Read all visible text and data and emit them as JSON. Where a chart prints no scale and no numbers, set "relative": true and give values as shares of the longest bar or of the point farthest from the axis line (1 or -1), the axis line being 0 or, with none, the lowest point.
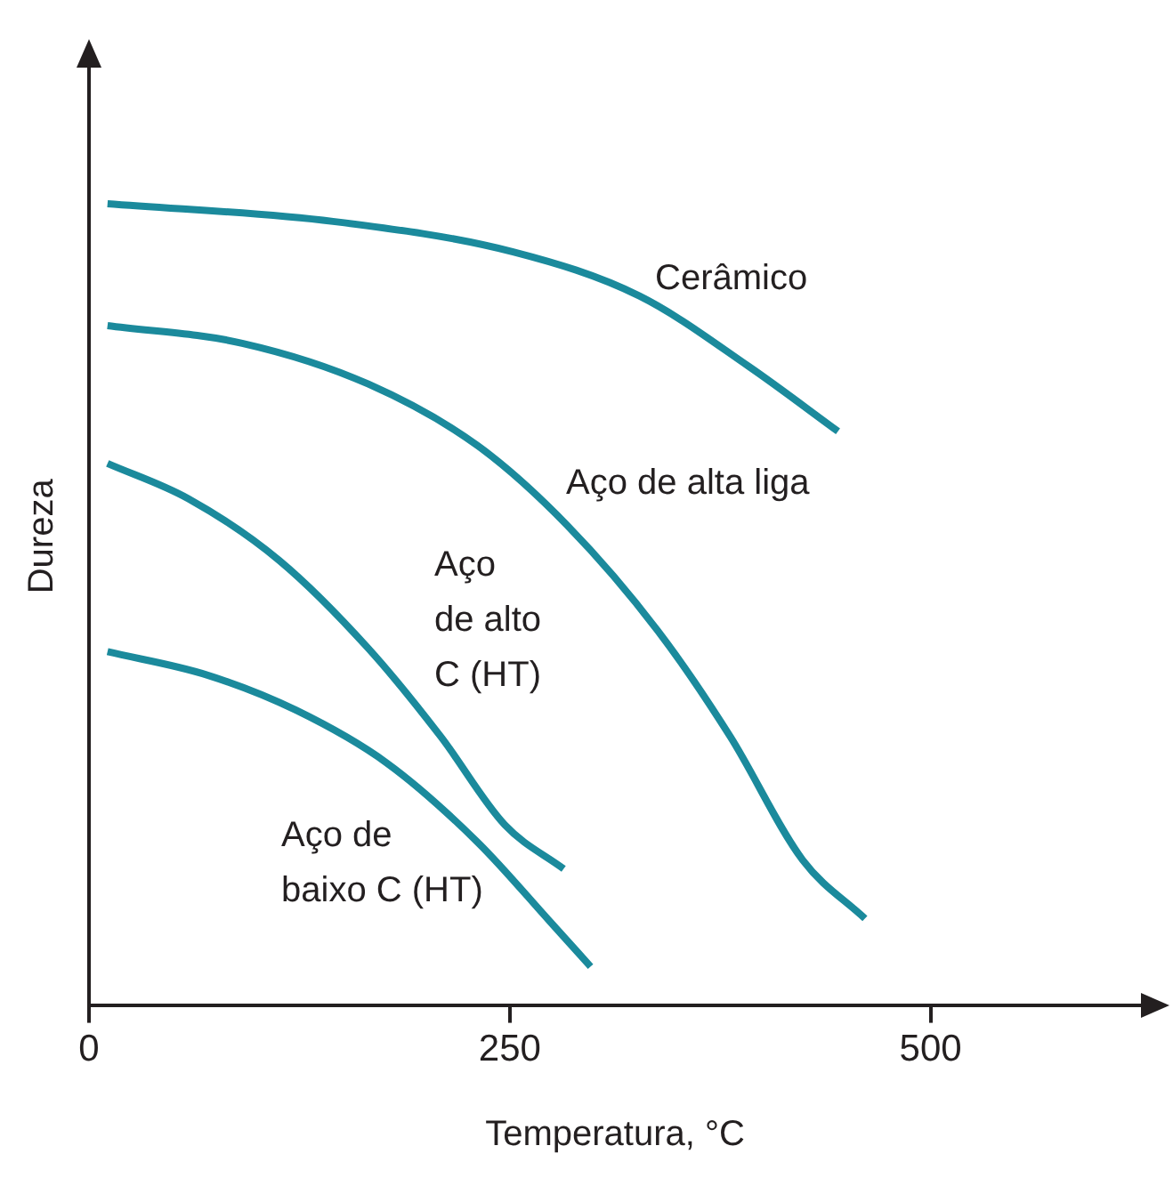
{
  "chart_data": {
    "type": "line",
    "xlabel": "Temperatura, °C",
    "ylabel": "Dureza",
    "relative": true,
    "xlim": [
      0,
      625
    ],
    "xticks": [
      0,
      250,
      500
    ],
    "grid": false,
    "legend": false,
    "marker": "none",
    "line_style": "solid",
    "series": [
      {
        "name": "Cerâmico",
        "color": "#1b8a9c",
        "x": [
          11,
          145,
          252,
          327,
          392,
          445
        ],
        "values": [
          1.0,
          0.978,
          0.94,
          0.885,
          0.797,
          0.716
        ]
      },
      {
        "name": "Aço de alta liga",
        "color": "#1b8a9c",
        "x": [
          11,
          91,
          166,
          231,
          284,
          338,
          381,
          424,
          461
        ],
        "values": [
          0.848,
          0.826,
          0.775,
          0.698,
          0.599,
          0.467,
          0.335,
          0.181,
          0.108
        ]
      },
      {
        "name": "Aço de alto C (HT)",
        "color": "#1b8a9c",
        "x": [
          11,
          59,
          113,
          166,
          209,
          247,
          282
        ],
        "values": [
          0.676,
          0.632,
          0.555,
          0.445,
          0.335,
          0.225,
          0.17
        ]
      },
      {
        "name": "Aço de baixo C (HT)",
        "color": "#1b8a9c",
        "x": [
          11,
          70,
          123,
          177,
          231,
          274,
          298
        ],
        "values": [
          0.441,
          0.412,
          0.368,
          0.302,
          0.203,
          0.104,
          0.048
        ]
      }
    ]
  }
}
